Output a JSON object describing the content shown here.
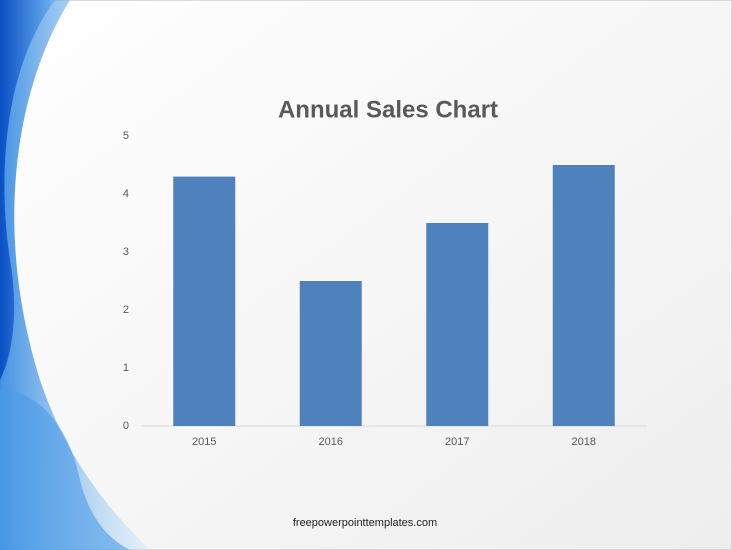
{
  "chart_data": {
    "type": "bar",
    "title": "Annual Sales Chart",
    "categories": [
      "2015",
      "2016",
      "2017",
      "2018"
    ],
    "values": [
      4.3,
      2.5,
      3.5,
      4.5
    ],
    "color": "#4f81bd",
    "ylim": [
      0,
      5
    ],
    "yticks": [
      0,
      1,
      2,
      3,
      4,
      5
    ],
    "grid": false
  },
  "footer": "freepowerpointtemplates.com"
}
